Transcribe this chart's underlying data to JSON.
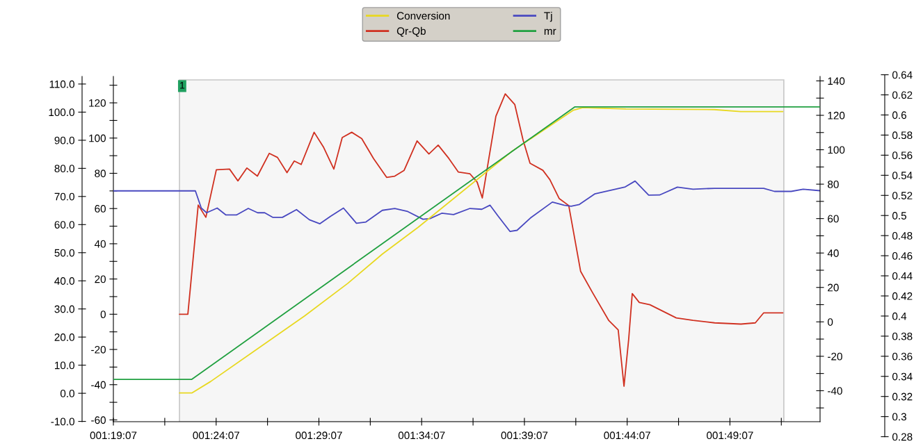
{
  "chart_data": [
    {
      "type": "line",
      "legend": "top",
      "xlim": [
        1.3186,
        1.8917
      ],
      "xticks": [
        {
          "value": 1.318611,
          "label": "001:19:07"
        },
        {
          "value": 1.360278,
          "label": null
        },
        {
          "value": 1.401944,
          "label": "001:24:07"
        },
        {
          "value": 1.443611,
          "label": null
        },
        {
          "value": 1.485278,
          "label": "001:29:07"
        },
        {
          "value": 1.526944,
          "label": null
        },
        {
          "value": 1.568611,
          "label": "001:34:07"
        },
        {
          "value": 1.610278,
          "label": null
        },
        {
          "value": 1.651944,
          "label": "001:39:07"
        },
        {
          "value": 1.693611,
          "label": null
        },
        {
          "value": 1.735278,
          "label": "001:44:07"
        },
        {
          "value": 1.776944,
          "label": null
        },
        {
          "value": 1.818611,
          "label": "001:49:07"
        },
        {
          "value": 1.860278,
          "label": null
        }
      ],
      "ylim": [
        -61,
        135
      ],
      "yticks": [
        -60,
        {
          "value": -50,
          "label": null
        },
        -40,
        {
          "value": -30,
          "label": null
        },
        -20,
        {
          "value": -10,
          "label": null
        },
        0,
        {
          "value": 10,
          "label": null
        },
        20,
        {
          "value": 30,
          "label": null
        },
        40,
        {
          "value": 50,
          "label": null
        },
        60,
        {
          "value": 70,
          "label": null
        },
        80,
        {
          "value": 90,
          "label": null
        },
        100,
        {
          "value": 110,
          "label": null
        },
        120,
        {
          "value": 130,
          "label": null
        }
      ],
      "y2lim": [
        -58,
        142.6
      ],
      "y2ticks": [
        {
          "value": -50,
          "label": null
        },
        -40,
        {
          "value": -30,
          "label": null
        },
        -20,
        {
          "value": -10,
          "label": null
        },
        0,
        {
          "value": 10,
          "label": null
        },
        20,
        {
          "value": 30,
          "label": null
        },
        40,
        {
          "value": 50,
          "label": null
        },
        60,
        {
          "value": 70,
          "label": null
        },
        80,
        {
          "value": 90,
          "label": null
        },
        100,
        {
          "value": 110,
          "label": null
        },
        120,
        {
          "value": 130,
          "label": null
        },
        140
      ],
      "y3lim": [
        -10.1,
        112.7
      ],
      "y3ticks": [
        {
          "value": -10,
          "label": "-10.0"
        },
        {
          "value": 0,
          "label": "0.0"
        },
        {
          "value": 10,
          "label": "10.0"
        },
        {
          "value": 20,
          "label": "20.0"
        },
        {
          "value": 30,
          "label": "30.0"
        },
        {
          "value": 40,
          "label": "40.0"
        },
        {
          "value": 50,
          "label": "50.0"
        },
        {
          "value": 60,
          "label": "60.0"
        },
        {
          "value": 70,
          "label": "70.0"
        },
        {
          "value": 80,
          "label": "80.0"
        },
        {
          "value": 90,
          "label": "90.0"
        },
        {
          "value": 100,
          "label": "100.0"
        },
        {
          "value": 110,
          "label": "110.0"
        }
      ],
      "bands": [
        {
          "axis": "x",
          "from": 1.3722,
          "to": 1.8623,
          "label": "1",
          "color": "#f6f6f6"
        }
      ],
      "series": [
        {
          "name": "Conversion",
          "color": "#e8d820",
          "axis": "y3",
          "x": [
            1.3722,
            1.3822,
            1.3975,
            1.4737,
            1.5087,
            1.5367,
            1.5659,
            1.6422,
            1.6917,
            1.6993,
            1.7343,
            1.8059,
            1.8273,
            1.8615
          ],
          "values": [
            0.1,
            0.1,
            4.2,
            27.5,
            39.1,
            49.5,
            59.1,
            86.2,
            100.7,
            101.6,
            101.1,
            100.9,
            100.2,
            100.2
          ]
        },
        {
          "name": "Qr-Qb",
          "color": "#d03020",
          "x": [
            1.3722,
            1.379,
            1.3874,
            1.3936,
            1.4021,
            1.4128,
            1.4196,
            1.4269,
            1.4354,
            1.445,
            1.4517,
            1.4594,
            1.4653,
            1.4709,
            1.4814,
            1.4889,
            1.4974,
            1.5042,
            1.5119,
            1.52,
            1.5296,
            1.5402,
            1.5468,
            1.5544,
            1.5649,
            1.5745,
            1.582,
            1.5907,
            1.5984,
            1.6078,
            1.6136,
            1.6178,
            1.6231,
            1.6288,
            1.6364,
            1.6441,
            1.6508,
            1.6565,
            1.6669,
            1.6726,
            1.6801,
            1.6879,
            1.6975,
            1.707,
            1.7204,
            1.728,
            1.7327,
            1.7365,
            1.7394,
            1.7451,
            1.7537,
            1.7751,
            1.7887,
            1.8062,
            1.8275,
            1.8392,
            1.846,
            1.8615
          ],
          "values": [
            0,
            0,
            62,
            55,
            82,
            82.4,
            75.7,
            83,
            78.4,
            91.3,
            89,
            80.4,
            87,
            85,
            103.3,
            95,
            82.4,
            100.3,
            103.3,
            99.7,
            88.4,
            77.7,
            78.4,
            81.7,
            98.4,
            91,
            96,
            88.4,
            80.7,
            79.7,
            75,
            66,
            88.4,
            112.4,
            125.1,
            119.1,
            99,
            85.7,
            81.7,
            76.4,
            65.7,
            61.7,
            24.4,
            12.5,
            -3.6,
            -8.9,
            -40.9,
            -14.2,
            11.7,
            6.7,
            5.4,
            -2.1,
            -3.5,
            -4.9,
            -5.6,
            -4.9,
            0.8,
            0.8
          ]
        },
        {
          "name": "Tj",
          "color": "#4848c0",
          "axis": "y2",
          "x": [
            1.3186,
            1.3851,
            1.3899,
            1.3942,
            1.4028,
            1.4099,
            1.4184,
            1.428,
            1.4356,
            1.4413,
            1.448,
            1.4557,
            1.4671,
            1.4776,
            1.4861,
            1.4948,
            1.5052,
            1.5157,
            1.5234,
            1.5367,
            1.5468,
            1.5573,
            1.5697,
            1.5754,
            1.5849,
            1.5945,
            1.6078,
            1.6174,
            1.624,
            1.6307,
            1.6403,
            1.646,
            1.6574,
            1.6746,
            1.6841,
            1.6898,
            1.6965,
            1.7089,
            1.7337,
            1.7417,
            1.7527,
            1.7615,
            1.776,
            1.7887,
            1.8062,
            1.846,
            1.8547,
            1.8683,
            1.878,
            1.8917
          ],
          "values": [
            76.1,
            76.1,
            66.1,
            63.4,
            66.1,
            62.1,
            62.1,
            65.9,
            63.4,
            63.4,
            60.7,
            60.7,
            65.2,
            59.3,
            57,
            61.4,
            66.1,
            57.3,
            58,
            64.8,
            65.9,
            64.1,
            59.6,
            60,
            63.1,
            62.3,
            65.9,
            65.4,
            67.8,
            61.4,
            52.5,
            53.2,
            60.7,
            69.6,
            67.8,
            67.2,
            68.2,
            74.3,
            78.4,
            81.8,
            73.6,
            73.7,
            78.3,
            77.1,
            77.6,
            77.6,
            75.8,
            75.8,
            77.1,
            76.2
          ]
        }
      ]
    },
    {
      "type": "line",
      "legend": "top",
      "tick_labels": "y",
      "xlim": [
        1.3186,
        1.8917
      ],
      "ylim": [
        0.28,
        0.64
      ],
      "yticks": [
        0.28,
        0.3,
        0.32,
        0.34,
        0.36,
        0.38,
        0.4,
        0.42,
        0.44,
        0.46,
        0.48,
        0.5,
        0.52,
        0.54,
        0.56,
        0.58,
        0.6,
        0.62,
        0.64
      ],
      "series": [
        {
          "name": "mr",
          "color": "#20a040",
          "x": [
            1.3186,
            1.3822,
            1.5367,
            1.6927,
            1.8917
          ],
          "values": [
            0.337,
            0.337,
            0.472,
            0.608,
            0.608
          ]
        }
      ]
    }
  ]
}
